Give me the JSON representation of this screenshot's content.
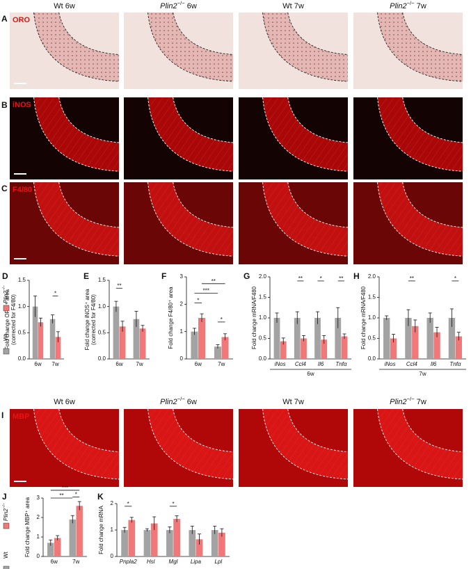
{
  "column_headers": {
    "top": [
      "Wt 6w",
      "Plin2−/− 6w",
      "Wt 7w",
      "Plin2−/− 7w"
    ],
    "bottom": [
      "Wt 6w",
      "Plin2−/− 6w",
      "Wt 7w",
      "Plin2−/− 7w"
    ]
  },
  "image_panels": [
    {
      "letter": "A",
      "stain": "ORO"
    },
    {
      "letter": "B",
      "stain": "iNOS"
    },
    {
      "letter": "C",
      "stain": "F4/80"
    },
    {
      "letter": "I",
      "stain": "MBP"
    }
  ],
  "chart_data": [
    {
      "type": "bar",
      "panel_label": "D",
      "ylabel": [
        "Fold change ORO⁺ area",
        "(corrected for F4/80)"
      ],
      "categories": [
        "6w",
        "7w"
      ],
      "series": [
        {
          "name": "Wt",
          "color": "#a3a3a3",
          "values": [
            1.0,
            0.76
          ],
          "errors": [
            0.2,
            0.08
          ]
        },
        {
          "name": "Plin2−/−",
          "color": "#f07878",
          "values": [
            0.7,
            0.42
          ],
          "errors": [
            0.08,
            0.1
          ]
        }
      ],
      "ylim": [
        0,
        1.5
      ],
      "yticks": [
        {
          "value": 0,
          "label": "0.0"
        },
        {
          "value": 0.5,
          "label": "0.5"
        },
        {
          "value": 1,
          "label": "1.0"
        },
        {
          "value": 1.5,
          "label": "1.5"
        }
      ],
      "significance": [
        "*"
      ],
      "legend": "left"
    },
    {
      "type": "bar",
      "panel_label": "E",
      "ylabel": [
        "Fold change iNOS⁺ area",
        "(corrected for F4/80)"
      ],
      "categories": [
        "6w",
        "7w"
      ],
      "series": [
        {
          "color": "#a3a3a3",
          "values": [
            1.0,
            0.76
          ],
          "errors": [
            0.1,
            0.15
          ]
        },
        {
          "color": "#f07878",
          "values": [
            0.62,
            0.58
          ],
          "errors": [
            0.1,
            0.06
          ]
        }
      ],
      "ylim": [
        0,
        1.5
      ],
      "yticks": [
        {
          "value": 0,
          "label": "0.0"
        },
        {
          "value": 0.5,
          "label": "0.5"
        },
        {
          "value": 1,
          "label": "1.0"
        },
        {
          "value": 1.5,
          "label": "1.5"
        }
      ],
      "significance": [
        "**"
      ]
    },
    {
      "type": "bar",
      "panel_label": "F",
      "ylabel": [
        "Fold change F4/80⁺ area"
      ],
      "categories": [
        "6w",
        "7w"
      ],
      "series": [
        {
          "color": "#a3a3a3",
          "values": [
            1.0,
            0.45
          ],
          "errors": [
            0.12,
            0.07
          ]
        },
        {
          "color": "#f07878",
          "values": [
            1.5,
            0.8
          ],
          "errors": [
            0.15,
            0.12
          ]
        }
      ],
      "ylim": [
        0,
        3
      ],
      "yticks": [
        0,
        1,
        2,
        3
      ],
      "significance": [
        "*",
        "***",
        "**",
        "*"
      ]
    },
    {
      "type": "bar",
      "panel_label": "G",
      "ylabel": [
        "Fold change mRNA/F480"
      ],
      "xlabel": "6w",
      "categories": [
        "iNos",
        "Ccl4",
        "Il6",
        "Tnfα"
      ],
      "series": [
        {
          "color": "#a3a3a3",
          "values": [
            1.0,
            1.0,
            1.0,
            1.0
          ],
          "errors": [
            0.12,
            0.15,
            0.15,
            0.25
          ]
        },
        {
          "color": "#f07878",
          "values": [
            0.43,
            0.5,
            0.47,
            0.55
          ],
          "errors": [
            0.08,
            0.07,
            0.1,
            0.06
          ]
        }
      ],
      "ylim": [
        0,
        2
      ],
      "yticks": [
        {
          "value": 0,
          "label": "0.0"
        },
        {
          "value": 0.5,
          "label": "0.5"
        },
        {
          "value": 1,
          "label": "1.0"
        },
        {
          "value": 1.5,
          "label": "1.5"
        },
        {
          "value": 2,
          "label": "2.0"
        }
      ],
      "significance": [
        "**",
        "*",
        "**"
      ]
    },
    {
      "type": "bar",
      "panel_label": "H",
      "ylabel": [
        "Fold change mRNA/F480"
      ],
      "xlabel": "7w",
      "categories": [
        "iNos",
        "Ccl4",
        "Il6",
        "Tnfα"
      ],
      "series": [
        {
          "color": "#a3a3a3",
          "values": [
            1.0,
            1.0,
            1.0,
            1.0
          ],
          "errors": [
            0.05,
            0.2,
            0.12,
            0.22
          ]
        },
        {
          "color": "#f07878",
          "values": [
            0.5,
            0.8,
            0.65,
            0.55
          ],
          "errors": [
            0.1,
            0.15,
            0.12,
            0.1
          ]
        }
      ],
      "ylim": [
        0,
        2
      ],
      "yticks": [
        {
          "value": 0,
          "label": "0.0"
        },
        {
          "value": 0.5,
          "label": "0.5"
        },
        {
          "value": 1,
          "label": "1.0"
        },
        {
          "value": 1.5,
          "label": "1.5"
        },
        {
          "value": 2,
          "label": "2.0"
        }
      ],
      "significance": [
        "**",
        "*"
      ]
    },
    {
      "type": "bar",
      "panel_label": "J",
      "ylabel": [
        "Fold change MBP⁺ area"
      ],
      "categories": [
        "6w",
        "7w"
      ],
      "series": [
        {
          "name": "Wt",
          "color": "#a3a3a3",
          "values": [
            0.7,
            1.9
          ],
          "errors": [
            0.15,
            0.2
          ]
        },
        {
          "name": "Plin2−/−",
          "color": "#f07878",
          "values": [
            0.95,
            2.6
          ],
          "errors": [
            0.12,
            0.22
          ]
        }
      ],
      "ylim": [
        0,
        3
      ],
      "yticks": [
        0,
        1,
        2,
        3
      ],
      "significance": [
        "**",
        "***",
        "*"
      ],
      "legend": "left"
    },
    {
      "type": "bar",
      "panel_label": "K",
      "ylabel": [
        "Fold change mRNA"
      ],
      "categories": [
        "Pnpla2",
        "Hsl",
        "Mgl",
        "Lipa",
        "Lpl"
      ],
      "series": [
        {
          "color": "#a3a3a3",
          "values": [
            1.0,
            1.0,
            1.0,
            1.0,
            1.0
          ],
          "errors": [
            0.1,
            0.05,
            0.12,
            0.15,
            0.15
          ]
        },
        {
          "color": "#f07878",
          "values": [
            1.38,
            1.25,
            1.42,
            0.65,
            0.9
          ],
          "errors": [
            0.1,
            0.25,
            0.12,
            0.2,
            0.15
          ]
        }
      ],
      "ylim": [
        0,
        2
      ],
      "yticks": [
        0,
        1,
        2
      ],
      "significance": [
        "*",
        "*"
      ]
    }
  ]
}
